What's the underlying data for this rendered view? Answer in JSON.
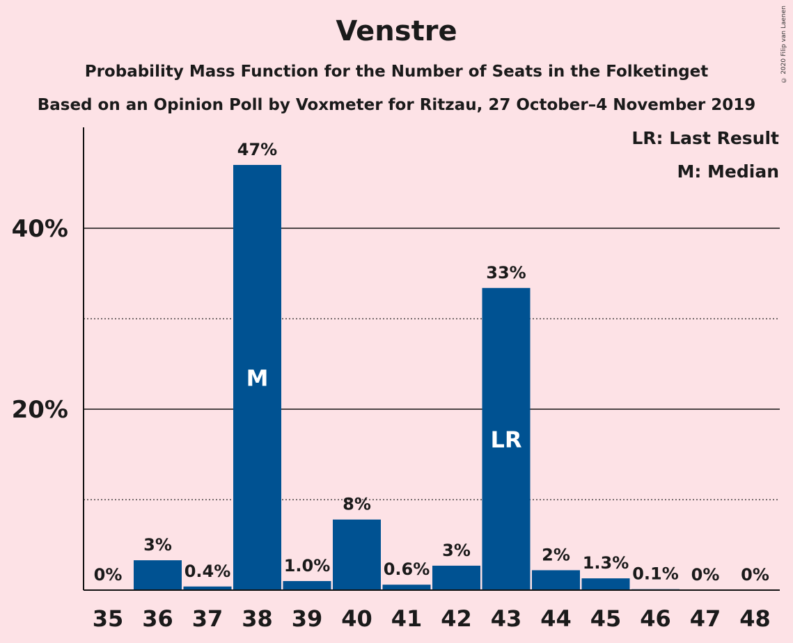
{
  "title": "Venstre",
  "subtitle": "Probability Mass Function for the Number of Seats in the Folketinget",
  "subtitle2": "Based on an Opinion Poll by Voxmeter for Ritzau, 27 October–4 November 2019",
  "copyright": "© 2020 Filip van Laenen",
  "legend": {
    "last_result": "LR: Last Result",
    "median": "M: Median"
  },
  "colors": {
    "background": "#fde2e6",
    "bar": "#005292",
    "text": "#1a1a1a"
  },
  "chart_data": {
    "type": "bar",
    "categories": [
      "35",
      "36",
      "37",
      "38",
      "39",
      "40",
      "41",
      "42",
      "43",
      "44",
      "45",
      "46",
      "47",
      "48"
    ],
    "values": [
      0,
      3.3,
      0.4,
      47,
      1.0,
      7.8,
      0.6,
      2.7,
      33.4,
      2.2,
      1.3,
      0.1,
      0,
      0
    ],
    "labels": [
      "0%",
      "3%",
      "0.4%",
      "47%",
      "1.0%",
      "8%",
      "0.6%",
      "3%",
      "33%",
      "2%",
      "1.3%",
      "0.1%",
      "0%",
      "0%"
    ],
    "markers": {
      "38": "M",
      "43": "LR"
    },
    "ylim": [
      0,
      51
    ],
    "yticks": [
      20,
      40
    ],
    "ytick_labels": [
      "20%",
      "40%"
    ],
    "minor_gridlines": [
      10,
      30
    ],
    "grid": true
  }
}
